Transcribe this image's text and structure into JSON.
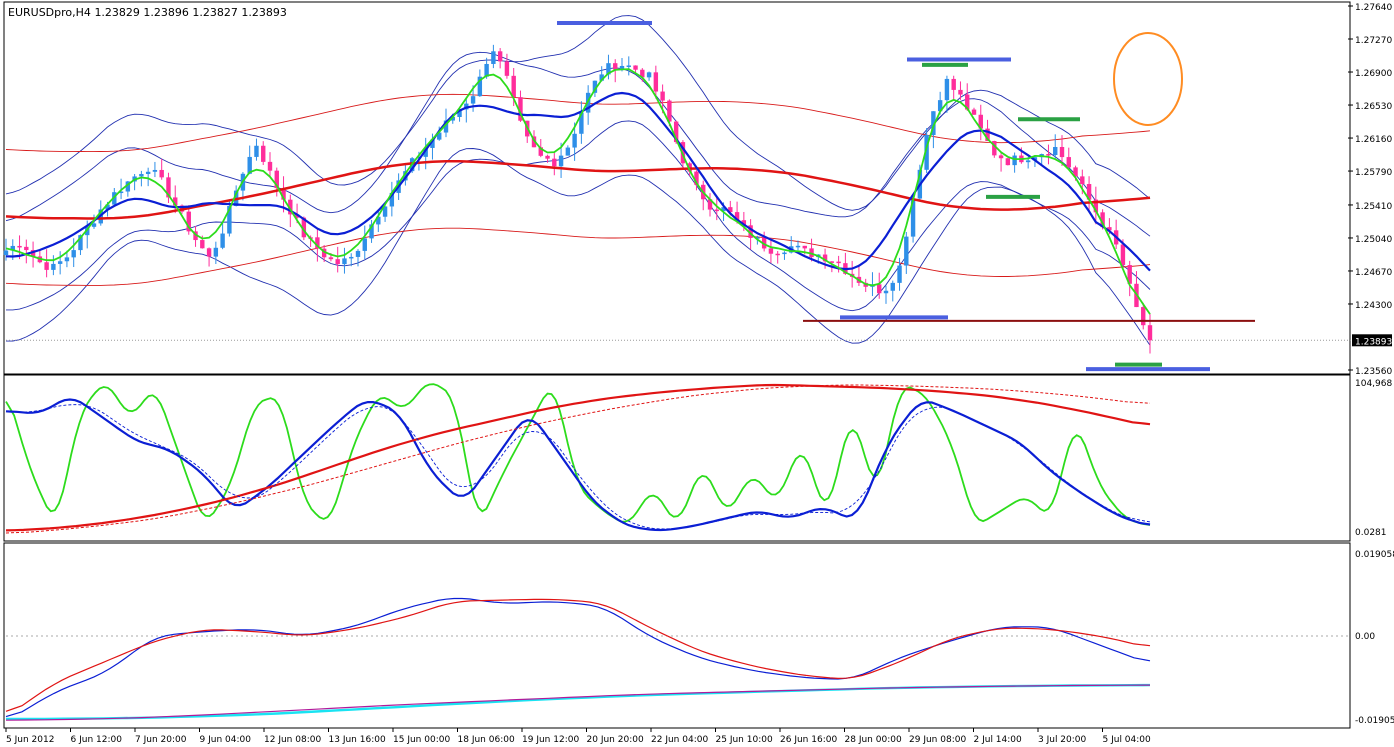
{
  "chart_header": {
    "symbol": "EURUSDpro",
    "timeframe": "H4",
    "ohlc": "1.23829 1.23896 1.23827 1.23893"
  },
  "colors": {
    "bull": "#2e8fe8",
    "bear": "#ff2d9b",
    "ma_blue": "#0b1fd4",
    "ma_green": "#2ddc1c",
    "ma_red": "#e01414",
    "band": "#2230b0",
    "env_red": "#d81b1b",
    "cyan": "#19e3f2",
    "magenta": "#b21a9a",
    "ellipse": "#ff8c22",
    "support_line": "#8b0f0f",
    "marker_blue": "#4a5fe0",
    "marker_green": "#2aa144"
  },
  "chart_data": [
    {
      "type": "candlestick",
      "symbol": "EURUSDpro",
      "timeframe": "H4",
      "open": 1.23829,
      "high": 1.23896,
      "low": 1.23827,
      "close": 1.23893,
      "current_price_label": "1.23893",
      "ylim": [
        1.2356,
        1.2764
      ],
      "y_ticks": [
        "1.27640",
        "1.27270",
        "1.26900",
        "1.26530",
        "1.26160",
        "1.25790",
        "1.25410",
        "1.25040",
        "1.24670",
        "1.24300",
        "1.23560"
      ],
      "x_ticks": [
        "5 Jun 2012",
        "6 Jun 12:00",
        "7 Jun 20:00",
        "9 Jun 04:00",
        "12 Jun 08:00",
        "13 Jun 16:00",
        "15 Jun 00:00",
        "18 Jun 06:00",
        "19 Jun 12:00",
        "20 Jun 20:00",
        "22 Jun 04:00",
        "25 Jun 10:00",
        "26 Jun 16:00",
        "28 Jun 00:00",
        "29 Jun 08:00",
        "2 Jul 14:00",
        "3 Jul 20:00",
        "5 Jul 04:00"
      ],
      "candle_close_path": [
        1.249,
        1.25,
        1.2478,
        1.247,
        1.2485,
        1.251,
        1.2535,
        1.2555,
        1.257,
        1.2585,
        1.2565,
        1.2535,
        1.2505,
        1.248,
        1.252,
        1.2575,
        1.261,
        1.257,
        1.254,
        1.2508,
        1.249,
        1.2475,
        1.248,
        1.251,
        1.254,
        1.2565,
        1.259,
        1.261,
        1.263,
        1.265,
        1.267,
        1.272,
        1.268,
        1.262,
        1.2595,
        1.259,
        1.261,
        1.266,
        1.269,
        1.27,
        1.2695,
        1.2685,
        1.265,
        1.26,
        1.256,
        1.254,
        1.2535,
        1.2515,
        1.25,
        1.249,
        1.2495,
        1.2488,
        1.2485,
        1.2478,
        1.2462,
        1.245,
        1.2445,
        1.247,
        1.256,
        1.264,
        1.268,
        1.266,
        1.263,
        1.26,
        1.259,
        1.2595,
        1.26,
        1.2605,
        1.258,
        1.255,
        1.252,
        1.249,
        1.243,
        1.2389
      ]
    },
    {
      "type": "line",
      "panel": "oscillator",
      "y_ticks": [
        "104,968",
        "0.0281"
      ],
      "series": [
        {
          "color": "green",
          "values": [
            95,
            40,
            5,
            80,
            100,
            75,
            96,
            50,
            5,
            30,
            85,
            90,
            20,
            5,
            60,
            92,
            80,
            100,
            90,
            5,
            40,
            70,
            100,
            30,
            15,
            5,
            30,
            5,
            45,
            12,
            40,
            20,
            60,
            10,
            80,
            25,
            98,
            90,
            60,
            5,
            15,
            25,
            10,
            75,
            30,
            10,
            5
          ]
        },
        {
          "color": "blue",
          "values": [
            80,
            78,
            90,
            75,
            60,
            55,
            40,
            15,
            30,
            50,
            70,
            88,
            80,
            40,
            20,
            50,
            80,
            50,
            20,
            5,
            2,
            5,
            10,
            15,
            10,
            18,
            8,
            60,
            88,
            80,
            70,
            60,
            40,
            25,
            12,
            5
          ]
        },
        {
          "color": "red",
          "values": [
            2,
            4,
            8,
            14,
            22,
            32,
            44,
            56,
            66,
            74,
            82,
            88,
            92,
            95,
            97,
            96,
            95,
            93,
            90,
            85,
            78,
            70
          ]
        },
        {
          "color": "red-dashed",
          "values": [
            0,
            4,
            10,
            20,
            32,
            46,
            60,
            72,
            82,
            90,
            95,
            97,
            96,
            94,
            90,
            84
          ]
        }
      ]
    },
    {
      "type": "line",
      "panel": "momentum",
      "y_ticks": [
        "0.019058",
        "0.00",
        "-0.01905"
      ],
      "ylim": [
        -0.01905,
        0.019058
      ],
      "series": [
        {
          "color": "blue",
          "values": [
            -0.0185,
            -0.012,
            -0.008,
            0.0,
            0.001,
            0.0015,
            0.0,
            0.002,
            0.006,
            0.0085,
            0.007,
            0.0075,
            0.0065,
            -0.0005,
            -0.005,
            -0.0075,
            -0.009,
            -0.0095,
            -0.0045,
            -0.001,
            0.002,
            0.002,
            -0.002,
            -0.006
          ]
        },
        {
          "color": "red",
          "values": [
            -0.0175,
            -0.01,
            -0.0055,
            -0.001,
            0.0015,
            0.001,
            0.0,
            0.0015,
            0.004,
            0.0075,
            0.0078,
            0.008,
            0.0072,
            0.0015,
            -0.0035,
            -0.0065,
            -0.0085,
            -0.0095,
            -0.0055,
            -0.0005,
            0.0018,
            0.0015,
            0.0,
            -0.0025
          ]
        },
        {
          "color": "cyan",
          "values": [
            -0.018,
            -0.0178,
            -0.017,
            -0.0155,
            -0.014,
            -0.0128,
            -0.012,
            -0.0112,
            -0.0108,
            -0.0106
          ]
        },
        {
          "color": "magenta",
          "values": [
            -0.0183,
            -0.0178,
            -0.0165,
            -0.015,
            -0.0138,
            -0.0126,
            -0.0119,
            -0.0112,
            -0.0108,
            -0.0106
          ]
        }
      ]
    }
  ]
}
